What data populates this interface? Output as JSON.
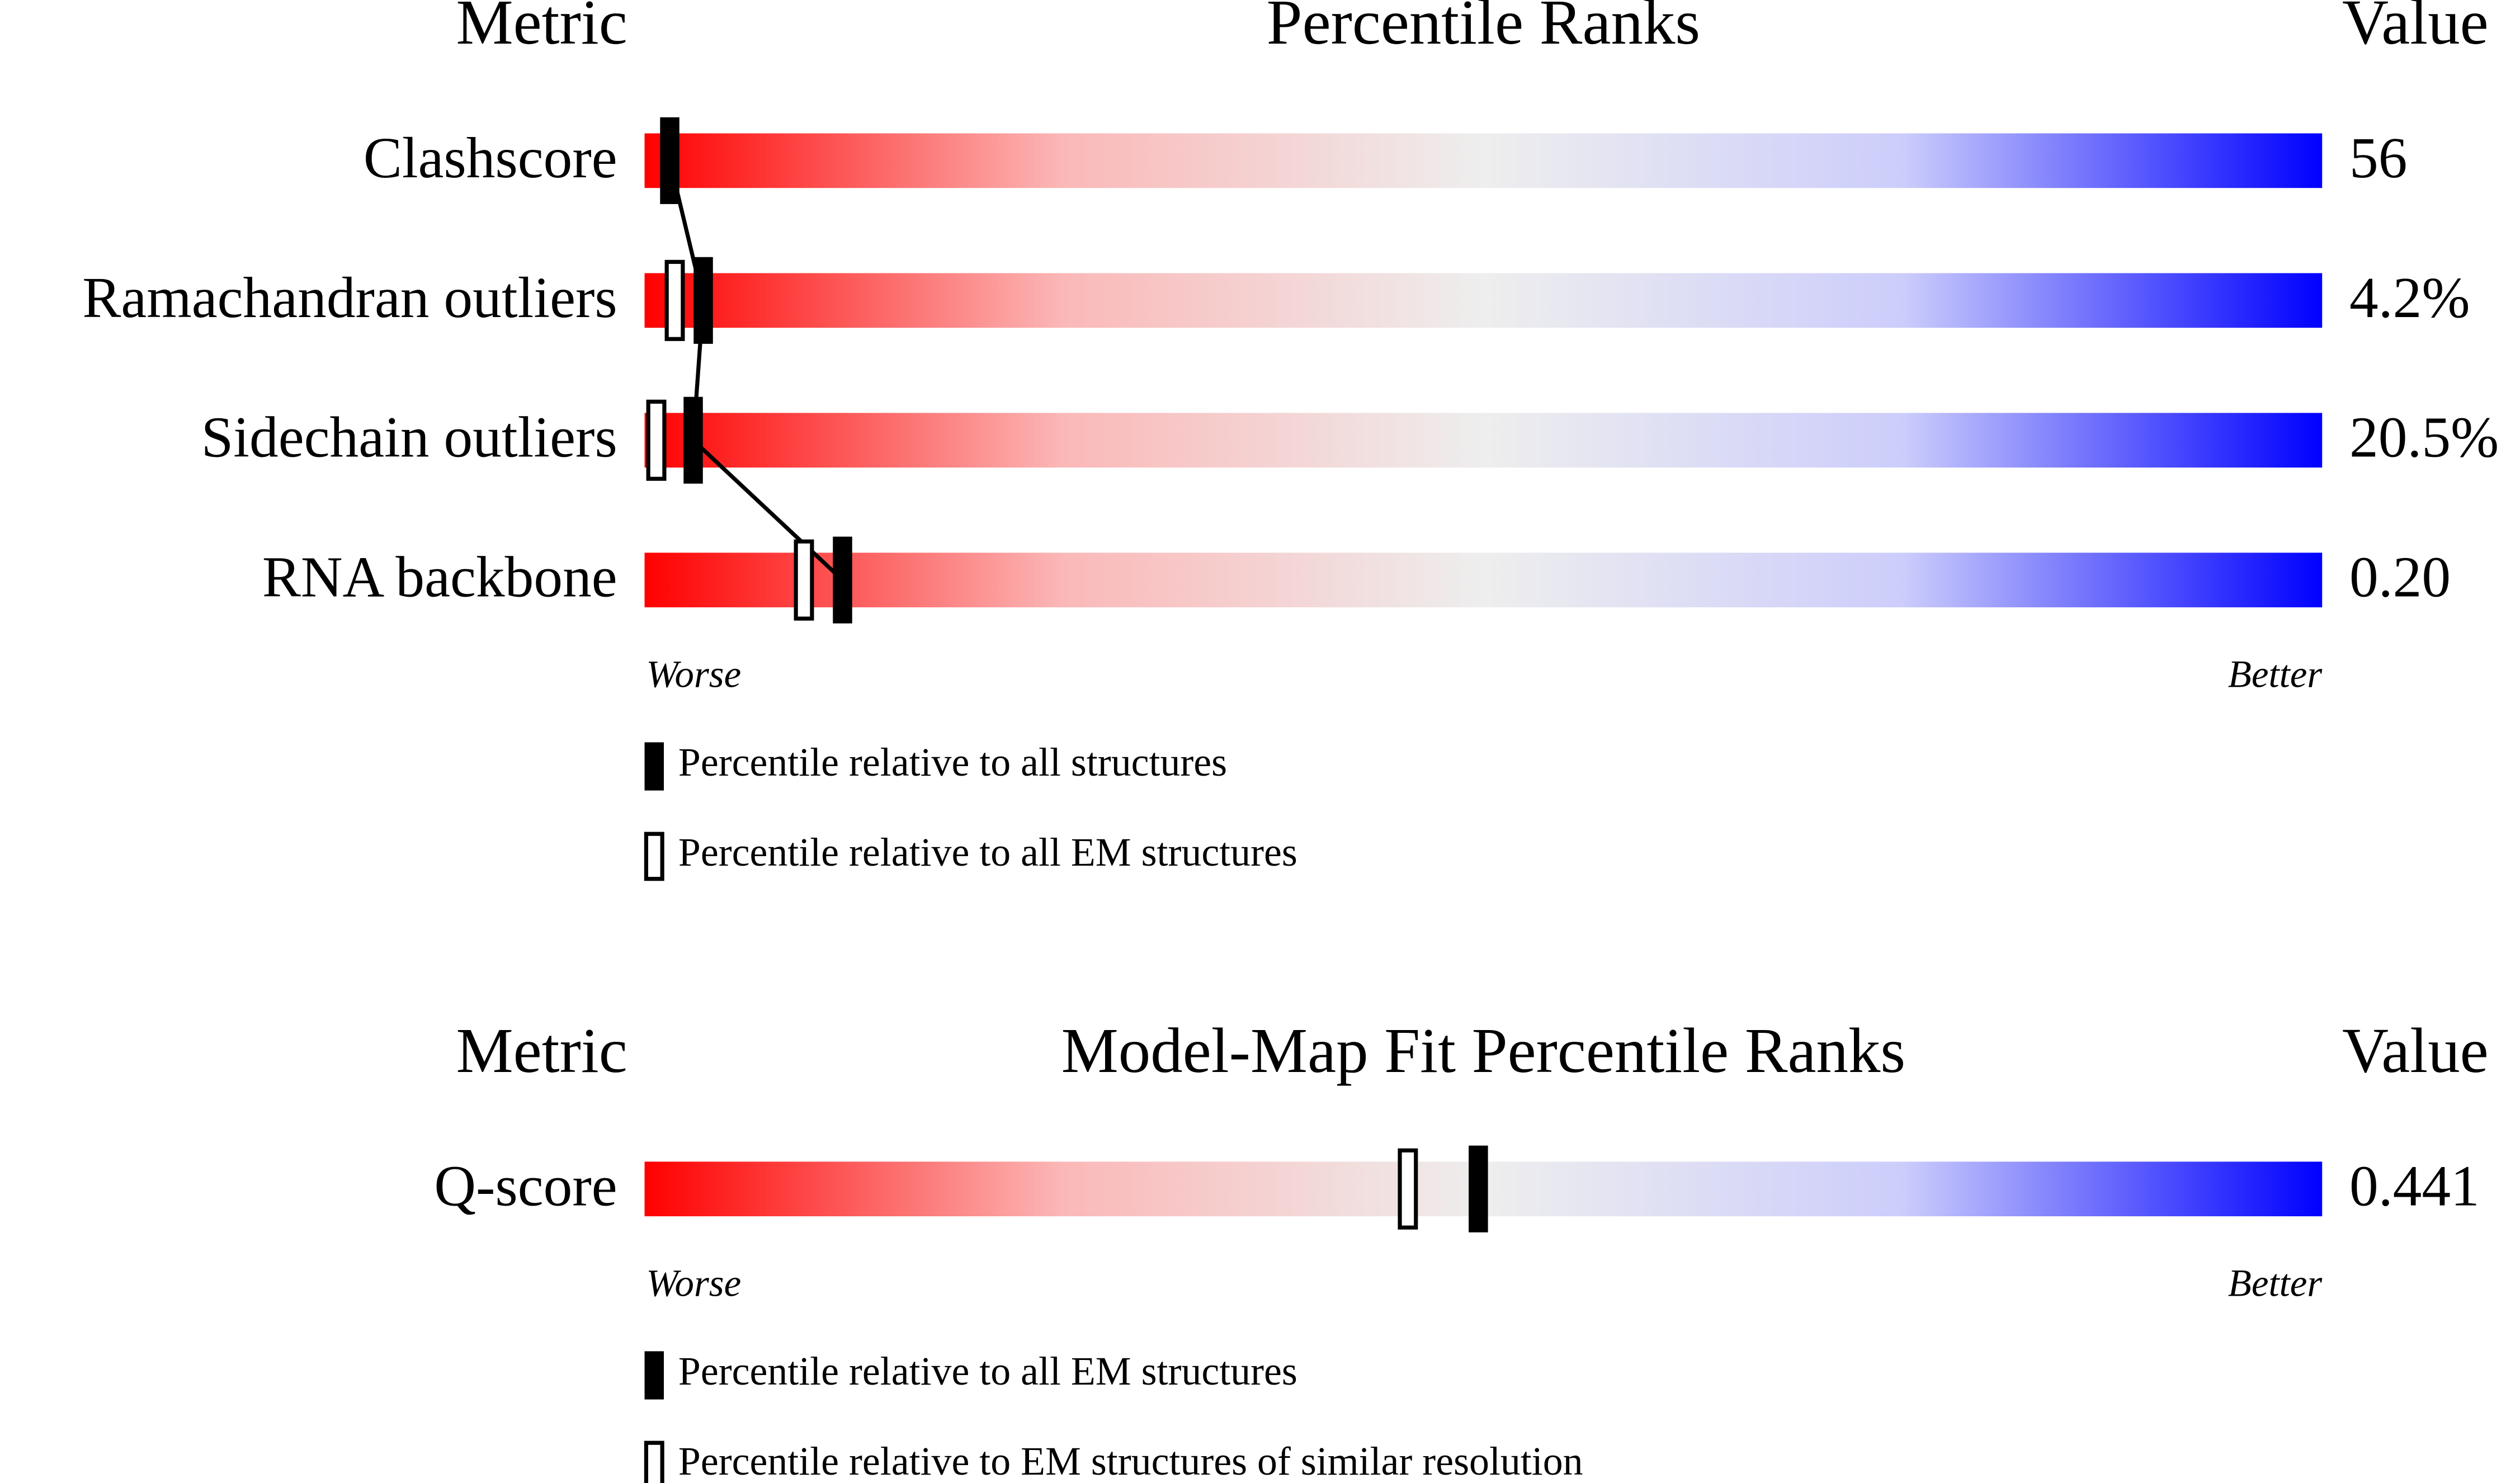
{
  "chart_data": [
    {
      "type": "percentile-slider",
      "metric_header": "Metric",
      "title": "Percentile Ranks",
      "value_header": "Value",
      "categories": [
        "Clashscore",
        "Ramachandran outliers",
        "Sidechain outliers",
        "RNA backbone"
      ],
      "metric_values": [
        "56",
        "4.2%",
        "20.5%",
        "0.20"
      ],
      "series": [
        {
          "name": "Percentile relative to all structures",
          "color": "#000000",
          "fill": "solid",
          "values": [
            1.5,
            3.5,
            2.9,
            11.8
          ]
        },
        {
          "name": "Percentile relative to all EM structures",
          "color": "#000000",
          "fill": "hollow",
          "values": [
            null,
            1.8,
            0.7,
            9.5
          ]
        }
      ],
      "xlim": [
        0,
        100
      ],
      "worse_label": "Worse",
      "better_label": "Better",
      "connect_line": true
    },
    {
      "type": "percentile-slider",
      "metric_header": "Metric",
      "title": "Model-Map Fit Percentile Ranks",
      "value_header": "Value",
      "categories": [
        "Q-score"
      ],
      "metric_values": [
        "0.441"
      ],
      "series": [
        {
          "name": "Percentile relative to all EM structures",
          "color": "#000000",
          "fill": "solid",
          "values": [
            49.7
          ]
        },
        {
          "name": "Percentile relative to EM structures of similar resolution",
          "color": "#000000",
          "fill": "hollow",
          "values": [
            45.5
          ]
        }
      ],
      "xlim": [
        0,
        100
      ],
      "worse_label": "Worse",
      "better_label": "Better",
      "connect_line": false
    }
  ]
}
